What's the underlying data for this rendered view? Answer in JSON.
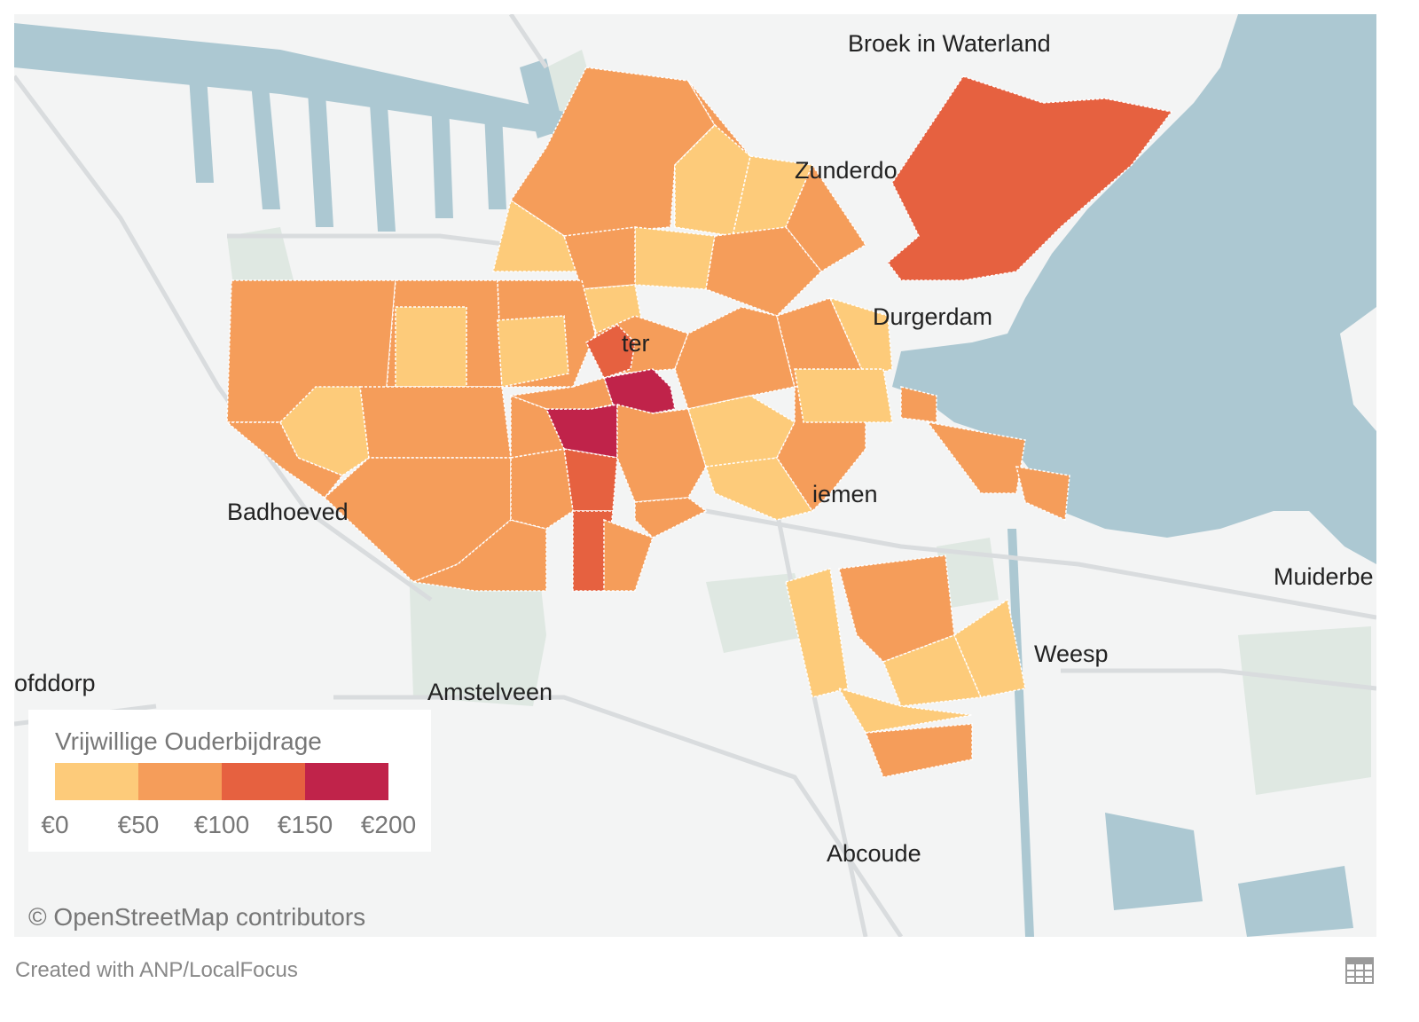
{
  "places": [
    {
      "name": "Broek in Waterland"
    },
    {
      "name": "Zunderdo"
    },
    {
      "name": "Durgerdam"
    },
    {
      "name": "ter"
    },
    {
      "name": "iemen"
    },
    {
      "name": "Badhoeved"
    },
    {
      "name": "Muiderbe"
    },
    {
      "name": "Weesp"
    },
    {
      "name": "ofddorp"
    },
    {
      "name": "Amstelveen"
    },
    {
      "name": "Abcoude"
    }
  ],
  "legend": {
    "title": "Vrijwillige Ouderbijdrage",
    "colors": [
      "#fdcb7a",
      "#f59d5a",
      "#e66140",
      "#c0234a"
    ],
    "ticks": [
      "€0",
      "€50",
      "€100",
      "€150",
      "€200"
    ]
  },
  "attribution": "© OpenStreetMap contributors",
  "credit": "Created with ANP/LocalFocus",
  "table_icon": "table-grid-icon"
}
